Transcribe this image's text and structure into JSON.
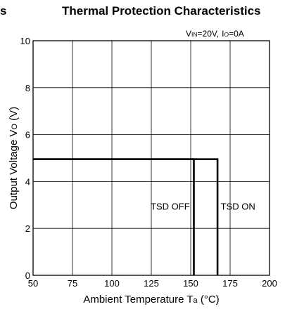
{
  "chart_data": {
    "type": "line",
    "title": "Thermal Protection Characteristics",
    "title_fragment_left": "s",
    "conditions": {
      "vin_symbol": "V",
      "vin_sub": "IN",
      "vin_value": "=20V,",
      "io_symbol": "I",
      "io_sub": "O",
      "io_value": "=0A"
    },
    "xlabel": {
      "prefix": "Ambient Temperature T",
      "sub": "a",
      "suffix": " (°C)"
    },
    "ylabel": {
      "prefix": "Output Voltage V",
      "sub": "O",
      "suffix": " (V)"
    },
    "xlim": [
      50,
      200
    ],
    "ylim": [
      0,
      10
    ],
    "xticks": [
      50,
      75,
      100,
      125,
      150,
      175,
      200
    ],
    "yticks": [
      0,
      2,
      4,
      6,
      8,
      10
    ],
    "grid": true,
    "series": [
      {
        "name": "TSD OFF",
        "points": [
          [
            50,
            4.95
          ],
          [
            152,
            4.95
          ],
          [
            152,
            0
          ]
        ]
      },
      {
        "name": "TSD ON",
        "points": [
          [
            50,
            4.95
          ],
          [
            167,
            4.95
          ],
          [
            167,
            0
          ]
        ]
      }
    ],
    "annotations": [
      {
        "text": "TSD OFF",
        "x": 137,
        "y": 2.8
      },
      {
        "text": "TSD ON",
        "x": 180,
        "y": 2.8
      }
    ]
  }
}
